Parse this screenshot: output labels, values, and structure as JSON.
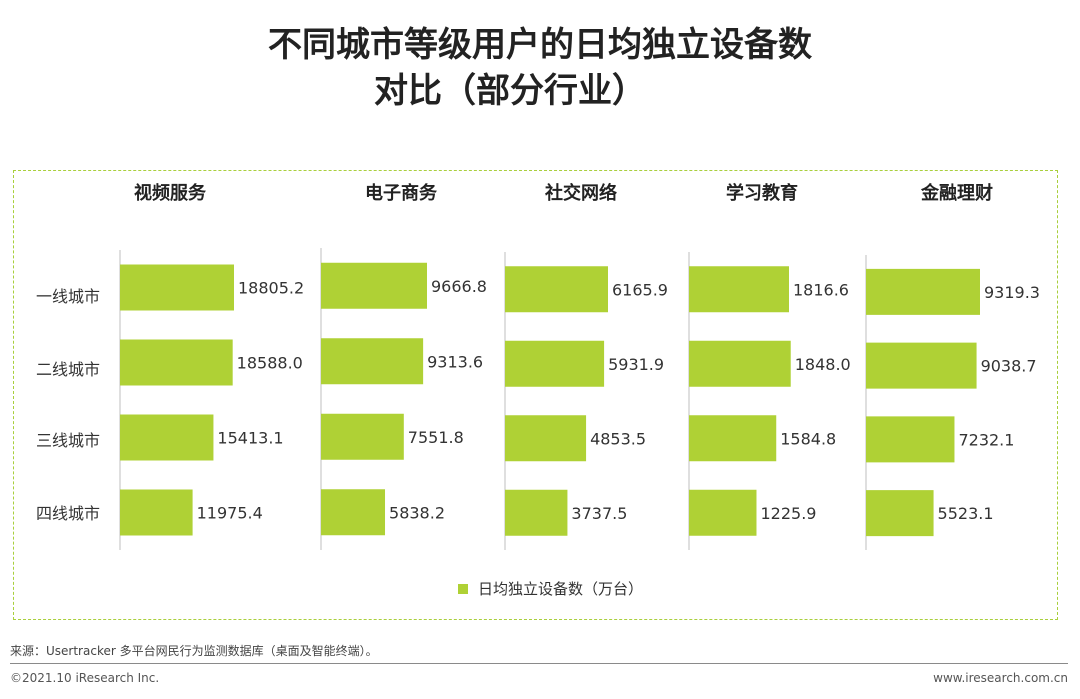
{
  "title": {
    "line1": "不同城市等级用户的日均独立设备数",
    "line2": "对比（部分行业）"
  },
  "legend": {
    "label": "日均独立设备数（万台）"
  },
  "footer": {
    "source": "来源：Usertracker 多平台网民行为监测数据库（桌面及智能终端）。",
    "copyright": "©2021.10 iResearch Inc.",
    "website": "www.iresearch.com.cn"
  },
  "colors": {
    "bar": "#afd135",
    "frame": "#a9cf3c",
    "axis": "#bfbfbf"
  },
  "chart_data": {
    "type": "bar",
    "orientation": "horizontal",
    "categories": [
      "一线城市",
      "二线城市",
      "三线城市",
      "四线城市"
    ],
    "panels": [
      {
        "title": "视频服务",
        "values": [
          "18805.2",
          "18588.0",
          "15413.1",
          "11975.4"
        ]
      },
      {
        "title": "电子商务",
        "values": [
          "9666.8",
          "9313.6",
          "7551.8",
          "5838.2"
        ]
      },
      {
        "title": "社交网络",
        "values": [
          "6165.9",
          "5931.9",
          "4853.5",
          "3737.5"
        ]
      },
      {
        "title": "学习教育",
        "values": [
          "1816.6",
          "1848.0",
          "1584.8",
          "1225.9"
        ]
      },
      {
        "title": "金融理财",
        "values": [
          "9319.3",
          "9038.7",
          "7232.1",
          "5523.1"
        ]
      }
    ],
    "series": [
      {
        "name": "日均独立设备数（万台）"
      }
    ],
    "legend_position": "bottom-center",
    "grid": false
  }
}
